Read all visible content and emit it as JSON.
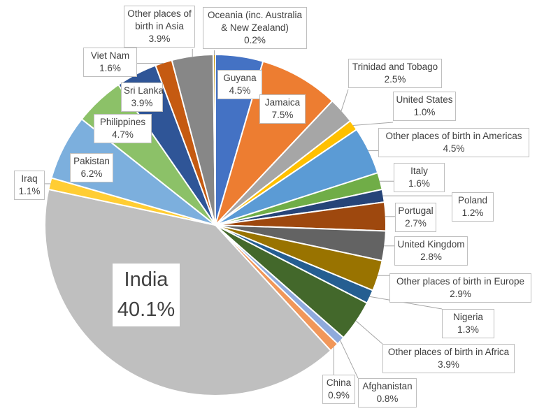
{
  "chart_data": {
    "type": "pie",
    "title": "",
    "unit": "%",
    "start_angle_deg": 0,
    "direction": "clockwise",
    "label_text_color": "#404040",
    "label_border_color": "#BFBFBF",
    "leader_line_color": "#A6A6A6",
    "slice_outline_color": "#FFFFFF",
    "series": [
      {
        "name": "Guyana",
        "value": 4.5,
        "pct_label": "4.5%",
        "color": "#4472C4",
        "label_lines": [
          "Guyana",
          "4.5%"
        ]
      },
      {
        "name": "Jamaica",
        "value": 7.5,
        "pct_label": "7.5%",
        "color": "#ED7D31",
        "label_lines": [
          "Jamaica",
          "7.5%"
        ]
      },
      {
        "name": "Trinidad and Tobago",
        "value": 2.5,
        "pct_label": "2.5%",
        "color": "#A6A6A6",
        "label_lines": [
          "Trinidad and Tobago",
          "2.5%"
        ]
      },
      {
        "name": "United States",
        "value": 1.0,
        "pct_label": "1.0%",
        "color": "#FFC000",
        "label_lines": [
          "United States",
          "1.0%"
        ]
      },
      {
        "name": "Other places of birth in Americas",
        "value": 4.5,
        "pct_label": "4.5%",
        "color": "#5B9BD5",
        "label_lines": [
          "Other places of birth in Americas",
          "4.5%"
        ]
      },
      {
        "name": "Italy",
        "value": 1.6,
        "pct_label": "1.6%",
        "color": "#70AD47",
        "label_lines": [
          "Italy",
          "1.6%"
        ]
      },
      {
        "name": "Poland",
        "value": 1.2,
        "pct_label": "1.2%",
        "color": "#264478",
        "label_lines": [
          "Poland",
          "1.2%"
        ]
      },
      {
        "name": "Portugal",
        "value": 2.7,
        "pct_label": "2.7%",
        "color": "#9E480E",
        "label_lines": [
          "Portugal",
          "2.7%"
        ]
      },
      {
        "name": "United Kingdom",
        "value": 2.8,
        "pct_label": "2.8%",
        "color": "#636363",
        "label_lines": [
          "United Kingdom",
          "2.8%"
        ]
      },
      {
        "name": "Other places of birth in Europe",
        "value": 2.9,
        "pct_label": "2.9%",
        "color": "#997300",
        "label_lines": [
          "Other places of birth in Europe",
          "2.9%"
        ]
      },
      {
        "name": "Nigeria",
        "value": 1.3,
        "pct_label": "1.3%",
        "color": "#255E91",
        "label_lines": [
          "Nigeria",
          "1.3%"
        ]
      },
      {
        "name": "Other places of birth in Africa",
        "value": 3.9,
        "pct_label": "3.9%",
        "color": "#43682B",
        "label_lines": [
          "Other places of birth in Africa",
          "3.9%"
        ]
      },
      {
        "name": "Afghanistan",
        "value": 0.8,
        "pct_label": "0.8%",
        "color": "#8FAADC",
        "label_lines": [
          "Afghanistan",
          "0.8%"
        ]
      },
      {
        "name": "China",
        "value": 0.9,
        "pct_label": "0.9%",
        "color": "#F1975A",
        "label_lines": [
          "China",
          "0.9%"
        ]
      },
      {
        "name": "India",
        "value": 40.1,
        "pct_label": "40.1%",
        "color": "#BFBFBF",
        "label_lines": [
          "India",
          "40.1%"
        ]
      },
      {
        "name": "Iraq",
        "value": 1.1,
        "pct_label": "1.1%",
        "color": "#FFCD33",
        "label_lines": [
          "Iraq",
          "1.1%"
        ]
      },
      {
        "name": "Pakistan",
        "value": 6.2,
        "pct_label": "6.2%",
        "color": "#7CAFDD",
        "label_lines": [
          "Pakistan",
          "6.2%"
        ]
      },
      {
        "name": "Philippines",
        "value": 4.7,
        "pct_label": "4.7%",
        "color": "#8CC168",
        "label_lines": [
          "Philippines",
          "4.7%"
        ]
      },
      {
        "name": "Sri Lanka",
        "value": 3.9,
        "pct_label": "3.9%",
        "color": "#2F5597",
        "label_lines": [
          "Sri Lanka",
          "3.9%"
        ]
      },
      {
        "name": "Viet Nam",
        "value": 1.6,
        "pct_label": "1.6%",
        "color": "#C55A11",
        "label_lines": [
          "Viet Nam",
          "1.6%"
        ]
      },
      {
        "name": "Other places of birth in Asia",
        "value": 3.9,
        "pct_label": "3.9%",
        "color": "#878787",
        "label_lines": [
          "Other places of",
          "birth in Asia",
          "3.9%"
        ]
      },
      {
        "name": "Oceania (inc. Australia & New Zealand)",
        "value": 0.2,
        "pct_label": "0.2%",
        "color": "#BF8F00",
        "label_lines": [
          "Oceania (inc. Australia",
          "& New Zealand)",
          "0.2%"
        ]
      }
    ]
  }
}
